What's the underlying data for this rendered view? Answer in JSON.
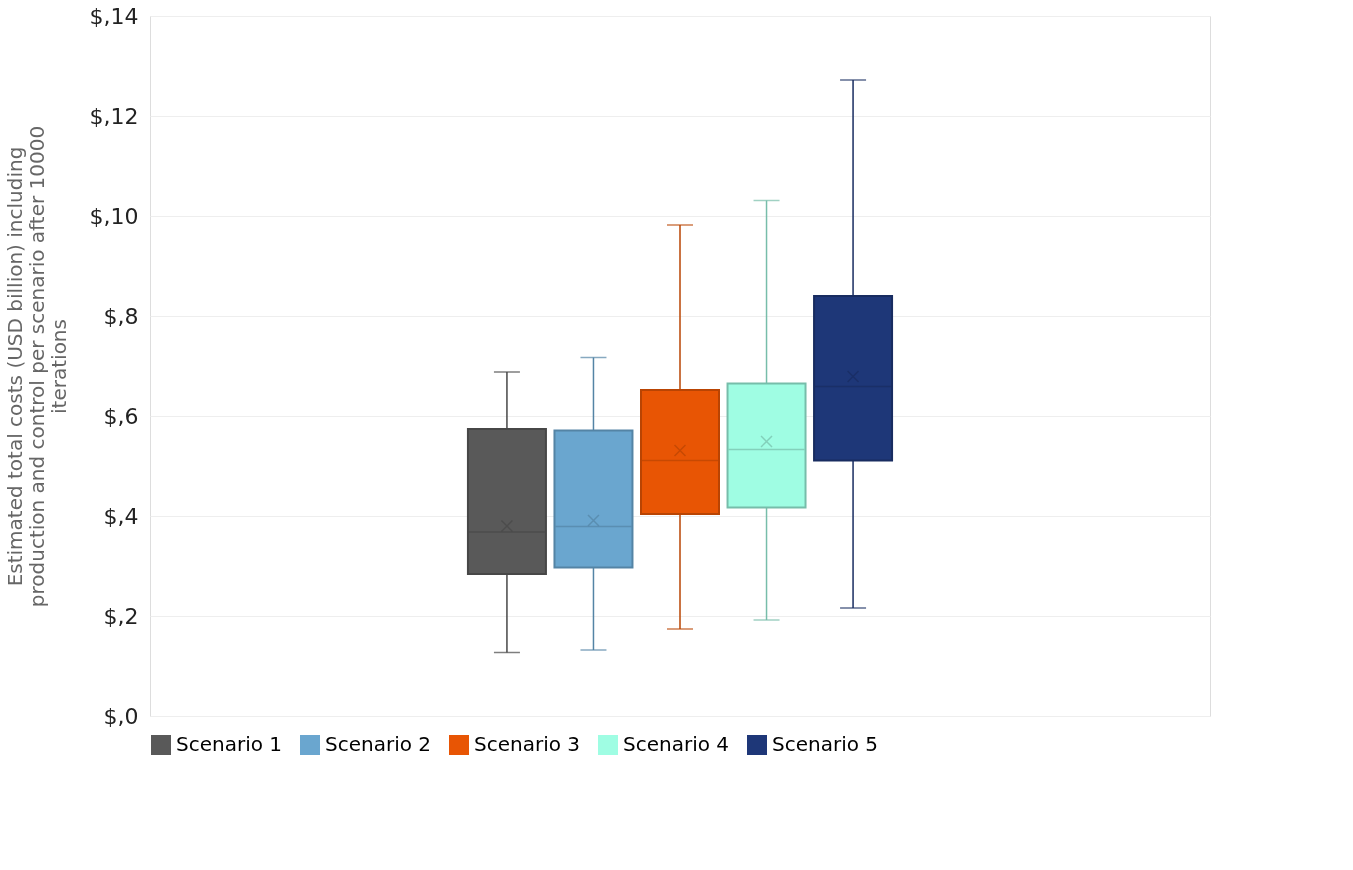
{
  "chart_data": {
    "type": "box",
    "ylabel": "Estimated total costs (USD billion) including production and control per scenario after 10000 iterations",
    "categories": [
      null
    ],
    "series": [
      {
        "name": "Scenario 1",
        "color": "#595959",
        "boxes": [
          {
            "low": 1.27,
            "q1": 2.84,
            "median": 3.68,
            "q3": 5.74,
            "high": 6.88,
            "mean": 3.8
          }
        ]
      },
      {
        "name": "Scenario 2",
        "color": "#6aa6cf",
        "boxes": [
          {
            "low": 1.32,
            "q1": 2.97,
            "median": 3.79,
            "q3": 5.71,
            "high": 7.17,
            "mean": 3.91
          }
        ]
      },
      {
        "name": "Scenario 3",
        "color": "#e85504",
        "boxes": [
          {
            "low": 1.74,
            "q1": 4.04,
            "median": 5.11,
            "q3": 6.52,
            "high": 9.82,
            "mean": 5.31
          }
        ]
      },
      {
        "name": "Scenario 4",
        "color": "#9ffde3",
        "boxes": [
          {
            "low": 1.92,
            "q1": 4.17,
            "median": 5.33,
            "q3": 6.65,
            "high": 10.31,
            "mean": 5.49
          }
        ]
      },
      {
        "name": "Scenario 5",
        "color": "#1e3778",
        "boxes": [
          {
            "low": 2.16,
            "q1": 5.11,
            "median": 6.59,
            "q3": 8.4,
            "high": 12.72,
            "mean": 6.79
          }
        ]
      }
    ],
    "ylim": [
      0,
      14
    ],
    "yticks": [
      {
        "value": 0,
        "label": "$,0"
      },
      {
        "value": 2,
        "label": "$,2"
      },
      {
        "value": 4,
        "label": "$,4"
      },
      {
        "value": 6,
        "label": "$,6"
      },
      {
        "value": 8,
        "label": "$,8"
      },
      {
        "value": 10,
        "label": "$,10"
      },
      {
        "value": 12,
        "label": "$,12"
      },
      {
        "value": 14,
        "label": "$,14"
      }
    ],
    "grid": "y",
    "legend": "bottom"
  }
}
